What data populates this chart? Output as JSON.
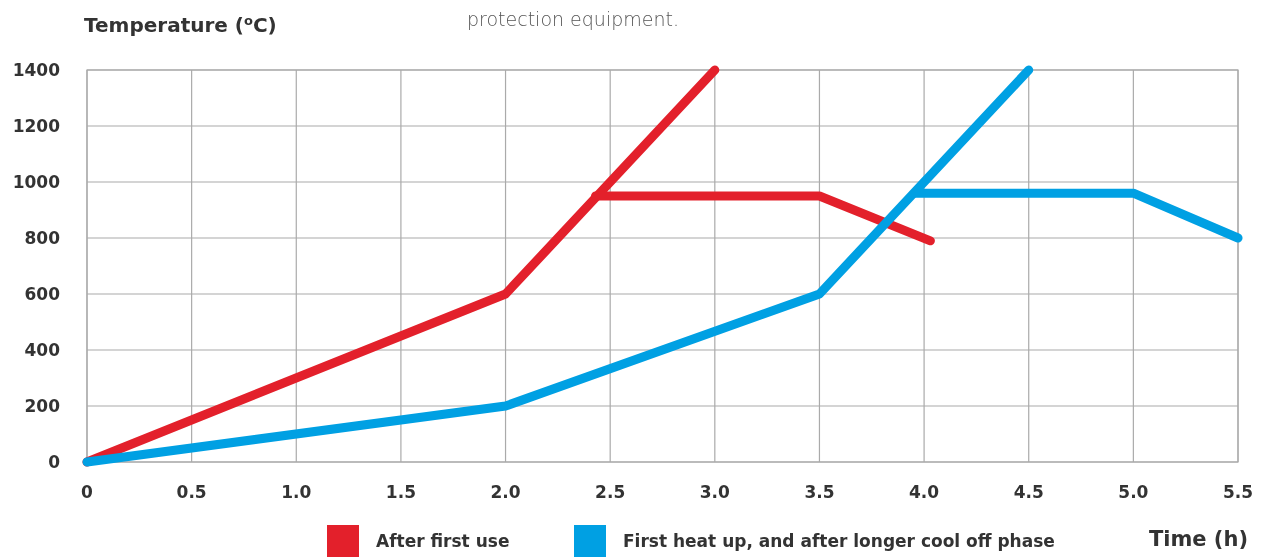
{
  "chart_data": {
    "type": "line",
    "ylabel": "Temperature ($^{o}$C)",
    "xlabel": "Time (h)",
    "annotations": [
      "protection equipment."
    ],
    "xlim": [
      0,
      5.5
    ],
    "xticks": [
      0,
      0.5,
      {
        "value": 1,
        "label": "1.0"
      },
      1.5,
      {
        "value": 2,
        "label": "2.0"
      },
      2.5,
      {
        "value": 3,
        "label": "3.0"
      },
      3.5,
      {
        "value": 4,
        "label": "4.0"
      },
      4.5,
      {
        "value": 5,
        "label": "5.0"
      },
      5.5
    ],
    "ylim": [
      0,
      1400
    ],
    "yticks": [
      0,
      200,
      400,
      600,
      800,
      1000,
      1200,
      1400
    ],
    "grid": true,
    "legend": "bottom",
    "marker": "none",
    "line_style": "solid",
    "series": [
      {
        "name": "After first use",
        "color": "#e3202b",
        "x": [
          0,
          2,
          3
        ],
        "values": [
          0,
          600,
          1400
        ]
      },
      {
        "color": "#e3202b",
        "x": [
          2.43,
          3.5,
          4.03
        ],
        "values": [
          950,
          950,
          790
        ]
      },
      {
        "name": "First heat up, and after longer cool off phase",
        "color": "#00a0e3",
        "x": [
          0,
          2,
          3.5,
          4.5
        ],
        "values": [
          0,
          200,
          600,
          1400
        ]
      },
      {
        "color": "#00a0e3",
        "x": [
          3.96,
          5,
          5.5
        ],
        "values": [
          960,
          960,
          800
        ]
      }
    ]
  }
}
